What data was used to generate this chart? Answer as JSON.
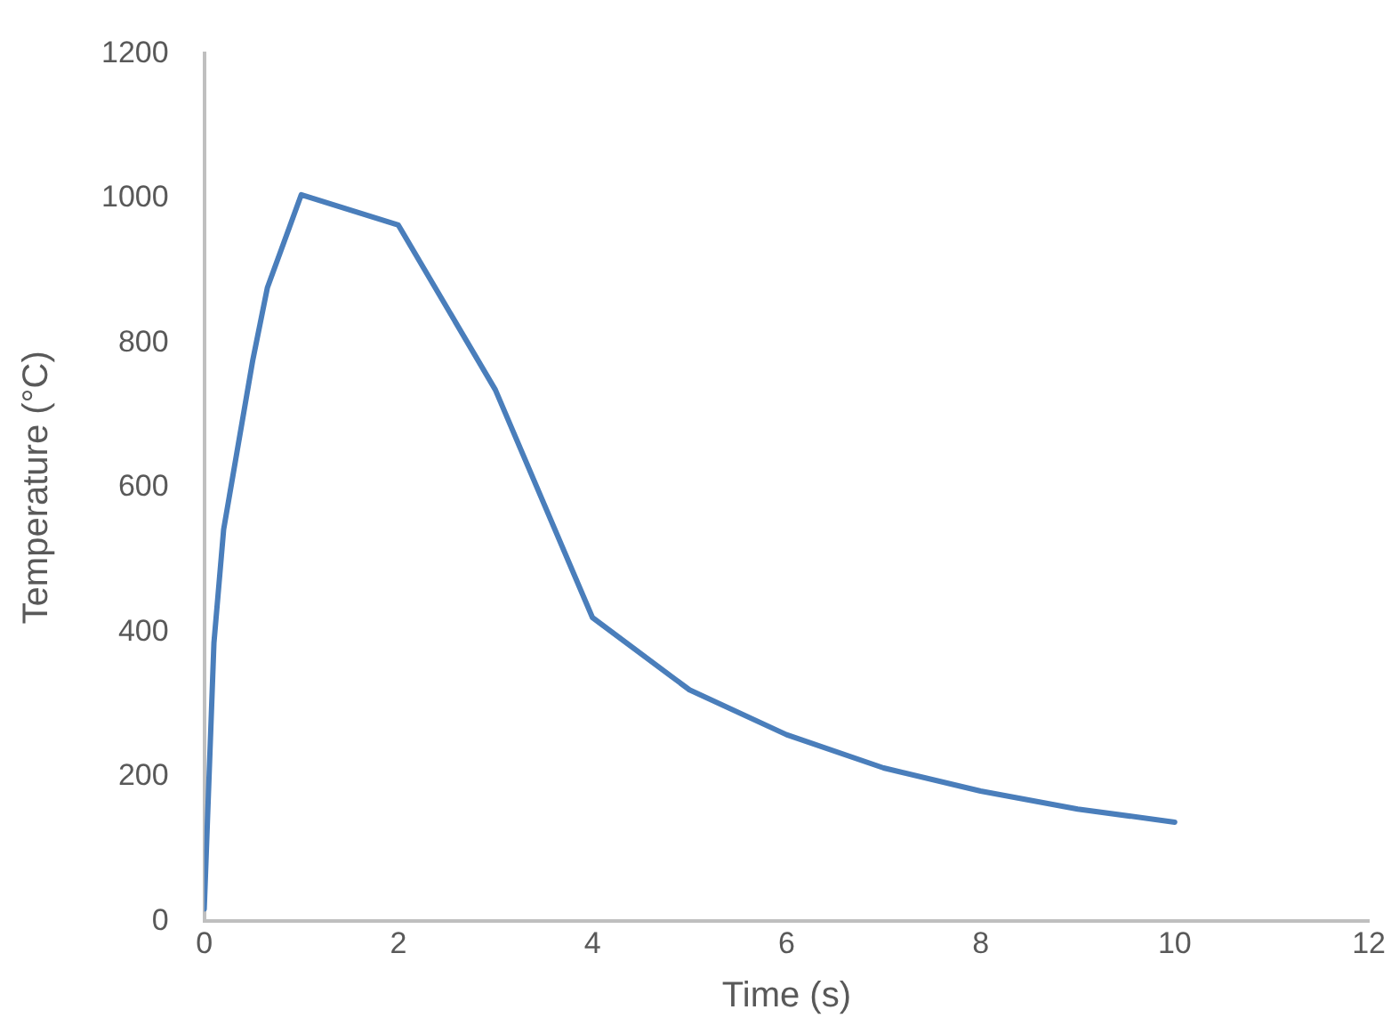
{
  "chart_data": {
    "type": "line",
    "xlabel": "Time (s)",
    "ylabel": "Temperature (°C)",
    "x": [
      0,
      0.1,
      0.2,
      0.5,
      0.65,
      1,
      2,
      3,
      4,
      5,
      6,
      7,
      8,
      9,
      10
    ],
    "series": [
      {
        "color": "#4a7ebb",
        "values": [
          17,
          385,
          542,
          776,
          876,
          1005,
          963,
          735,
          420,
          320,
          258,
          212,
          180,
          155,
          137
        ]
      }
    ],
    "xlim": [
      0,
      12
    ],
    "xticks": [
      0,
      2,
      4,
      6,
      8,
      10,
      12
    ],
    "ylim": [
      0,
      1200
    ],
    "yticks": [
      0,
      200,
      400,
      600,
      800,
      1000,
      1200
    ],
    "grid": false,
    "legend": false,
    "marker": "none",
    "line_style": "solid"
  }
}
